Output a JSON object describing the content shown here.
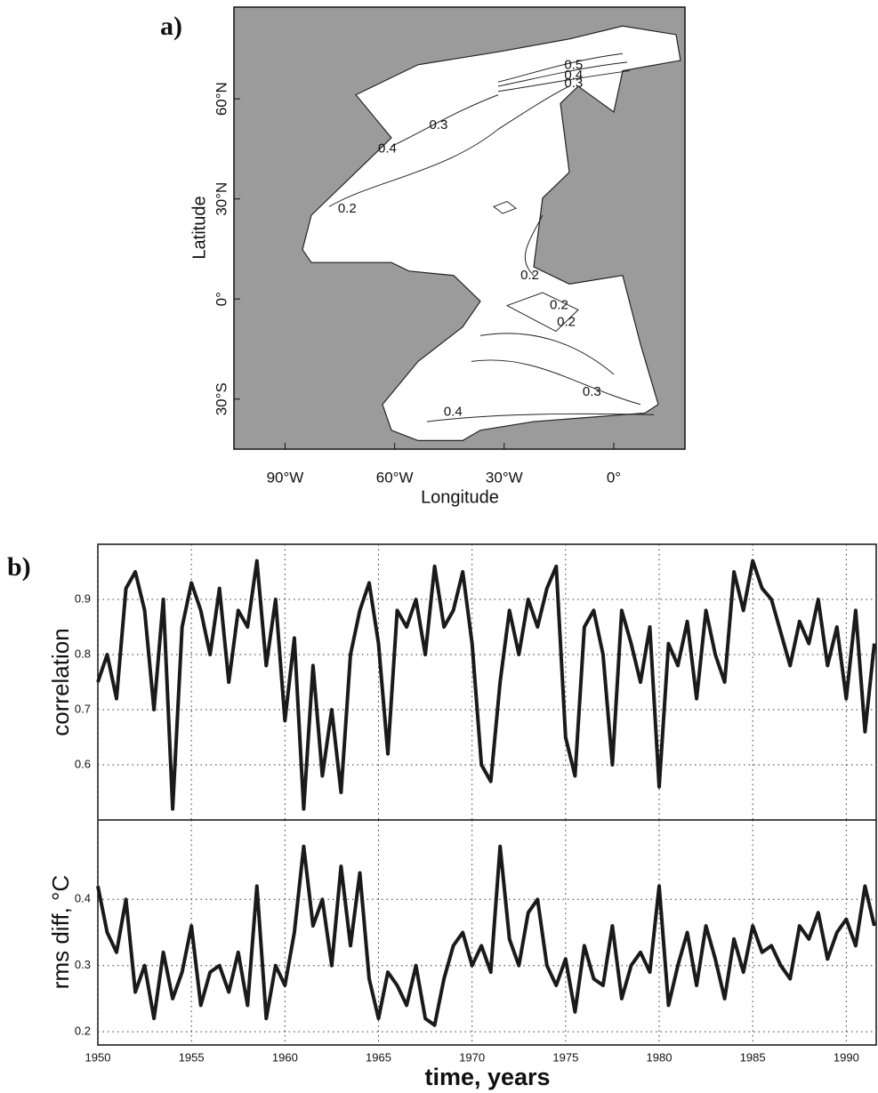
{
  "chart_data": [
    {
      "type": "map",
      "panel_label": "a)",
      "xlabel": "Longitude",
      "ylabel": "Latitude",
      "xlim": [
        -104,
        19.5
      ],
      "ylim": [
        -45,
        87.5
      ],
      "xticks": [
        {
          "value": -90,
          "label": "90°W"
        },
        {
          "value": -60,
          "label": "60°W"
        },
        {
          "value": -30,
          "label": "30°W"
        },
        {
          "value": 0,
          "label": "0°"
        }
      ],
      "yticks": [
        {
          "value": -30,
          "label": "30°S"
        },
        {
          "value": 0,
          "label": "0°"
        },
        {
          "value": 30,
          "label": "30°N"
        },
        {
          "value": 60,
          "label": "60°N"
        }
      ],
      "contour_labels": [
        {
          "value": 0.5,
          "lon": -11,
          "lat": 70
        },
        {
          "value": 0.4,
          "lon": -11,
          "lat": 67
        },
        {
          "value": 0.3,
          "lon": -11,
          "lat": 64.5
        },
        {
          "value": 0.3,
          "lon": -48,
          "lat": 52
        },
        {
          "value": 0.4,
          "lon": -62,
          "lat": 45
        },
        {
          "value": 0.2,
          "lon": -73,
          "lat": 27
        },
        {
          "value": 0.2,
          "lon": -23,
          "lat": 7
        },
        {
          "value": 0.2,
          "lon": -15,
          "lat": -2
        },
        {
          "value": 0.2,
          "lon": -13,
          "lat": -7
        },
        {
          "value": 0.3,
          "lon": -6,
          "lat": -28
        },
        {
          "value": 0.4,
          "lon": -44,
          "lat": -34
        }
      ]
    },
    {
      "type": "line",
      "panel_label": "b)",
      "ylabel": "correlation",
      "color": "#1a1a1a",
      "grid": true,
      "xlim": [
        1950,
        1991.6
      ],
      "ylim": [
        0.5,
        1.0
      ],
      "yticks": [
        0.6,
        0.7,
        0.8,
        0.9
      ],
      "x": [
        1950,
        1950.5,
        1951,
        1951.5,
        1952,
        1952.5,
        1953,
        1953.5,
        1954,
        1954.5,
        1955,
        1955.5,
        1956,
        1956.5,
        1957,
        1957.5,
        1958,
        1958.5,
        1959,
        1959.5,
        1960,
        1960.5,
        1961,
        1961.5,
        1962,
        1962.5,
        1963,
        1963.5,
        1964,
        1964.5,
        1965,
        1965.5,
        1966,
        1966.5,
        1967,
        1967.5,
        1968,
        1968.5,
        1969,
        1969.5,
        1970,
        1970.5,
        1971,
        1971.5,
        1972,
        1972.5,
        1973,
        1973.5,
        1974,
        1974.5,
        1975,
        1975.5,
        1976,
        1976.5,
        1977,
        1977.5,
        1978,
        1978.5,
        1979,
        1979.5,
        1980,
        1980.5,
        1981,
        1981.5,
        1982,
        1982.5,
        1983,
        1983.5,
        1984,
        1984.5,
        1985,
        1985.5,
        1986,
        1986.5,
        1987,
        1987.5,
        1988,
        1988.5,
        1989,
        1989.5,
        1990,
        1990.5,
        1991,
        1991.5
      ],
      "values": [
        0.75,
        0.8,
        0.72,
        0.92,
        0.95,
        0.88,
        0.7,
        0.9,
        0.52,
        0.85,
        0.93,
        0.88,
        0.8,
        0.92,
        0.75,
        0.88,
        0.85,
        0.97,
        0.78,
        0.9,
        0.68,
        0.83,
        0.52,
        0.78,
        0.58,
        0.7,
        0.55,
        0.8,
        0.88,
        0.93,
        0.82,
        0.62,
        0.88,
        0.85,
        0.9,
        0.8,
        0.96,
        0.85,
        0.88,
        0.95,
        0.82,
        0.6,
        0.57,
        0.75,
        0.88,
        0.8,
        0.9,
        0.85,
        0.92,
        0.96,
        0.65,
        0.58,
        0.85,
        0.88,
        0.8,
        0.6,
        0.88,
        0.82,
        0.75,
        0.85,
        0.56,
        0.82,
        0.78,
        0.86,
        0.72,
        0.88,
        0.8,
        0.75,
        0.95,
        0.88,
        0.97,
        0.92,
        0.9,
        0.84,
        0.78,
        0.86,
        0.82,
        0.9,
        0.78,
        0.85,
        0.72,
        0.88,
        0.66,
        0.82
      ]
    },
    {
      "type": "line",
      "ylabel": "rms diff, °C",
      "xlabel": "time, years",
      "color": "#1a1a1a",
      "grid": true,
      "xlim": [
        1950,
        1991.6
      ],
      "ylim": [
        0.18,
        0.52
      ],
      "yticks": [
        0.2,
        0.3,
        0.4
      ],
      "xticks": [
        1950,
        1955,
        1960,
        1965,
        1970,
        1975,
        1980,
        1985,
        1990
      ],
      "x": [
        1950,
        1950.5,
        1951,
        1951.5,
        1952,
        1952.5,
        1953,
        1953.5,
        1954,
        1954.5,
        1955,
        1955.5,
        1956,
        1956.5,
        1957,
        1957.5,
        1958,
        1958.5,
        1959,
        1959.5,
        1960,
        1960.5,
        1961,
        1961.5,
        1962,
        1962.5,
        1963,
        1963.5,
        1964,
        1964.5,
        1965,
        1965.5,
        1966,
        1966.5,
        1967,
        1967.5,
        1968,
        1968.5,
        1969,
        1969.5,
        1970,
        1970.5,
        1971,
        1971.5,
        1972,
        1972.5,
        1973,
        1973.5,
        1974,
        1974.5,
        1975,
        1975.5,
        1976,
        1976.5,
        1977,
        1977.5,
        1978,
        1978.5,
        1979,
        1979.5,
        1980,
        1980.5,
        1981,
        1981.5,
        1982,
        1982.5,
        1983,
        1983.5,
        1984,
        1984.5,
        1985,
        1985.5,
        1986,
        1986.5,
        1987,
        1987.5,
        1988,
        1988.5,
        1989,
        1989.5,
        1990,
        1990.5,
        1991,
        1991.5
      ],
      "values": [
        0.42,
        0.35,
        0.32,
        0.4,
        0.26,
        0.3,
        0.22,
        0.32,
        0.25,
        0.29,
        0.36,
        0.24,
        0.29,
        0.3,
        0.26,
        0.32,
        0.24,
        0.42,
        0.22,
        0.3,
        0.27,
        0.35,
        0.48,
        0.36,
        0.4,
        0.3,
        0.45,
        0.33,
        0.44,
        0.28,
        0.22,
        0.29,
        0.27,
        0.24,
        0.3,
        0.22,
        0.21,
        0.28,
        0.33,
        0.35,
        0.3,
        0.33,
        0.29,
        0.48,
        0.34,
        0.3,
        0.38,
        0.4,
        0.3,
        0.27,
        0.31,
        0.23,
        0.33,
        0.28,
        0.27,
        0.36,
        0.25,
        0.3,
        0.32,
        0.29,
        0.42,
        0.24,
        0.3,
        0.35,
        0.27,
        0.36,
        0.31,
        0.25,
        0.34,
        0.29,
        0.36,
        0.32,
        0.33,
        0.3,
        0.28,
        0.36,
        0.34,
        0.38,
        0.31,
        0.35,
        0.37,
        0.33,
        0.42,
        0.36
      ]
    }
  ]
}
